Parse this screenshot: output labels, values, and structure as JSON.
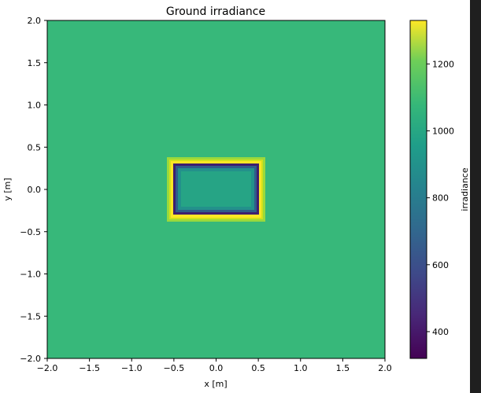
{
  "chart_data": {
    "type": "heatmap",
    "title": "Ground irradiance",
    "xlabel": "x [m]",
    "ylabel": "y [m]",
    "xlim": [
      -2.0,
      2.0
    ],
    "ylim": [
      -2.0,
      2.0
    ],
    "x_ticks": [
      "−2.0",
      "−1.5",
      "−1.0",
      "−0.5",
      "0.0",
      "0.5",
      "1.0",
      "1.5",
      "2.0"
    ],
    "y_ticks": [
      "2.0",
      "1.5",
      "1.0",
      "0.5",
      "0.0",
      "−0.5",
      "−1.0",
      "−1.5",
      "−2.0"
    ],
    "colormap": "viridis",
    "colorbar": {
      "label": "irradiance",
      "range": [
        320,
        1330
      ],
      "ticks": [
        "1200",
        "1000",
        "800",
        "600",
        "400"
      ],
      "tick_values": [
        1200,
        1000,
        800,
        600,
        400
      ]
    },
    "regions": [
      {
        "desc": "ambient ground",
        "value": 1000
      },
      {
        "desc": "object footprint x∈[-0.5,0.5], y∈[-0.3,0.3] interior",
        "value": 860
      },
      {
        "desc": "footprint edge (dark rim)",
        "value": 360
      },
      {
        "desc": "outer halo ring",
        "value": 1320
      }
    ],
    "grid": false,
    "legend": "colorbar-right"
  },
  "colors": {
    "background": "#37b87a",
    "interior": "#26a485",
    "rim": "#3e1f6e",
    "halo": "#fde725"
  }
}
